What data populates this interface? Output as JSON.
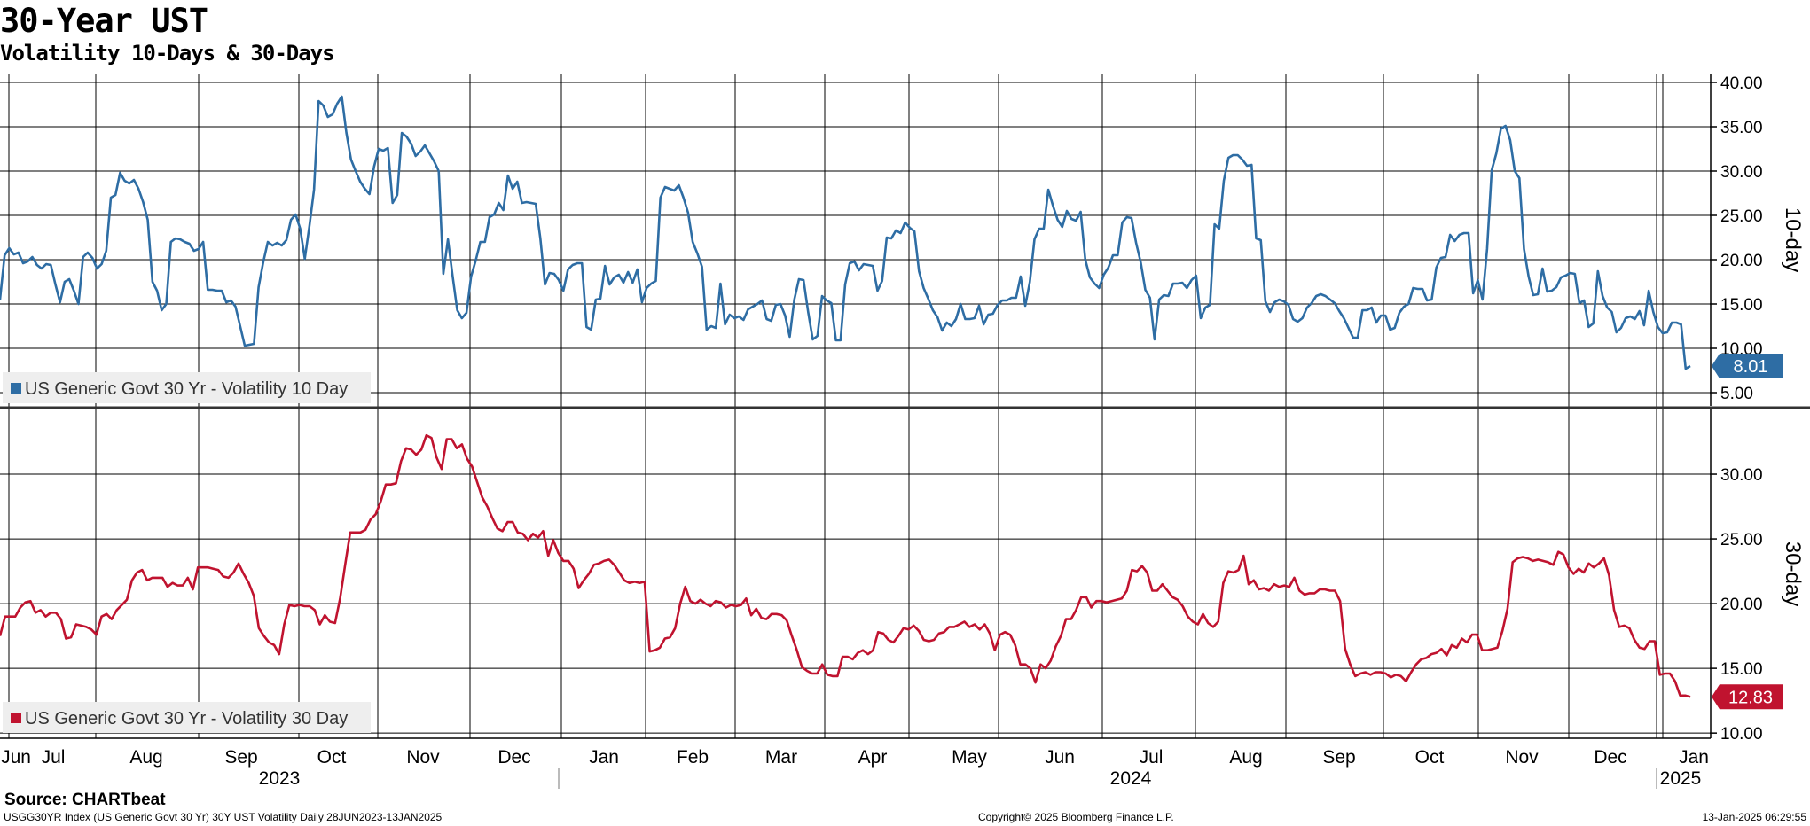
{
  "header": {
    "title": "30-Year UST",
    "subtitle": "Volatility 10-Days & 30-Days"
  },
  "footer": {
    "source": "Source: CHARTbeat",
    "index_desc": "USGG30YR Index (US Generic Govt 30 Yr) 30Y UST Volatility  Daily 28JUN2023-13JAN2025",
    "copyright": "Copyright© 2025 Bloomberg Finance L.P.",
    "timestamp": "13-Jan-2025 06:29:55"
  },
  "colors": {
    "blue": "#2e6da4",
    "red": "#c0132f",
    "grid": "#000000",
    "legend_bg": "#eeeeee"
  },
  "x_axis": {
    "months": [
      "Jun",
      "Jul",
      "Aug",
      "Sep",
      "Oct",
      "Nov",
      "Dec",
      "Jan",
      "Feb",
      "Mar",
      "Apr",
      "May",
      "Jun",
      "Jul",
      "Aug",
      "Sep",
      "Oct",
      "Nov",
      "Dec",
      "Jan"
    ],
    "years": [
      "2023",
      "2024",
      "2025"
    ]
  },
  "chart_data": [
    {
      "type": "line",
      "panel": "top",
      "ylabel": "10-day",
      "ylim": [
        3.5,
        41.0
      ],
      "yticks": [
        "40.00",
        "35.00",
        "30.00",
        "25.00",
        "20.00",
        "15.00",
        "10.00",
        "5.00"
      ],
      "last_value": "8.01",
      "series": [
        {
          "name": "US Generic Govt 30 Yr - Volatility 10 Day",
          "x_range": [
            "28JUN2023",
            "13JAN2025"
          ],
          "values": [
            15.5,
            20.5,
            21.3,
            20.6,
            20.8,
            19.6,
            19.8,
            20.3,
            19.4,
            19.0,
            19.5,
            19.4,
            17.2,
            15.2,
            17.5,
            17.8,
            16.5,
            15.0,
            20.3,
            20.8,
            20.2,
            19.0,
            19.5,
            21.0,
            27.0,
            27.3,
            29.8,
            28.9,
            28.6,
            29.0,
            28.0,
            26.5,
            24.5,
            17.5,
            16.5,
            14.3,
            15.0,
            22.0,
            22.4,
            22.3,
            22.0,
            21.8,
            21.0,
            21.2,
            22.0,
            16.6,
            16.6,
            16.5,
            16.5,
            15.2,
            15.4,
            14.7,
            12.5,
            10.3,
            10.4,
            10.5,
            16.9,
            19.7,
            22.0,
            21.6,
            21.9,
            21.6,
            22.2,
            24.5,
            25.1,
            23.5,
            20.1,
            23.8,
            27.9,
            37.9,
            37.4,
            36.1,
            36.4,
            37.6,
            38.4,
            34.3,
            31.3,
            30.0,
            28.8,
            28.0,
            27.4,
            30.5,
            32.5,
            32.3,
            32.6,
            26.4,
            27.3,
            34.3,
            33.9,
            33.1,
            31.7,
            32.2,
            32.9,
            32.0,
            31.1,
            30.0,
            18.4,
            22.3,
            18.2,
            14.3,
            13.4,
            14.0,
            18.1,
            19.9,
            22.0,
            22.0,
            24.8,
            25.1,
            26.4,
            25.6,
            29.5,
            28.0,
            28.8,
            26.4,
            26.5,
            26.4,
            26.3,
            22.4,
            17.2,
            18.5,
            18.4,
            17.7,
            16.5,
            18.9,
            19.4,
            19.6,
            19.6,
            12.4,
            12.1,
            15.5,
            15.6,
            19.3,
            17.2,
            18.0,
            18.3,
            17.4,
            18.6,
            17.4,
            18.9,
            15.2,
            16.8,
            17.3,
            17.6,
            27.0,
            28.2,
            28.0,
            27.8,
            28.4,
            27.0,
            25.3,
            22.0,
            20.7,
            19.2,
            12.1,
            12.5,
            12.3,
            17.3,
            12.7,
            13.8,
            13.4,
            13.6,
            13.2,
            14.4,
            14.7,
            15.0,
            15.4,
            13.3,
            13.1,
            14.9,
            15.0,
            13.7,
            11.3,
            15.5,
            17.8,
            17.7,
            14.1,
            11.0,
            11.4,
            15.9,
            15.4,
            15.1,
            10.9,
            10.9,
            17.2,
            19.6,
            19.8,
            18.8,
            19.5,
            19.4,
            19.3,
            16.5,
            17.6,
            22.5,
            22.4,
            23.3,
            23.0,
            24.2,
            23.6,
            23.2,
            18.7,
            16.8,
            15.6,
            14.3,
            13.5,
            12.0,
            12.9,
            12.5,
            13.3,
            15.0,
            13.3,
            13.3,
            13.4,
            14.8,
            12.7,
            13.8,
            13.9,
            14.9,
            15.4,
            15.4,
            15.7,
            15.7,
            18.1,
            14.8,
            17.5,
            22.3,
            23.5,
            23.5,
            27.9,
            26.1,
            24.5,
            23.7,
            25.5,
            24.6,
            24.4,
            25.4,
            20.0,
            18.0,
            17.3,
            16.8,
            18.3,
            19.1,
            20.5,
            20.5,
            24.2,
            24.8,
            24.7,
            21.9,
            19.7,
            16.6,
            15.7,
            11.0,
            15.5,
            16.0,
            15.9,
            17.3,
            17.3,
            17.4,
            16.8,
            17.7,
            18.2,
            13.4,
            14.6,
            14.9,
            24.0,
            23.5,
            28.9,
            31.5,
            31.8,
            31.8,
            31.3,
            30.6,
            30.7,
            22.4,
            22.2,
            15.3,
            14.1,
            15.2,
            15.5,
            15.3,
            14.9,
            13.3,
            13.0,
            13.4,
            14.6,
            15.1,
            15.9,
            16.1,
            15.9,
            15.5,
            15.1,
            14.2,
            13.4,
            12.3,
            11.2,
            11.2,
            14.3,
            14.3,
            14.6,
            12.9,
            13.7,
            13.7,
            12.1,
            12.3,
            14.0,
            14.7,
            15.0,
            16.8,
            16.7,
            16.7,
            15.4,
            15.5,
            19.1,
            20.2,
            20.3,
            22.8,
            22.1,
            22.8,
            23.0,
            23.0,
            16.2,
            17.7,
            15.5,
            21.2,
            30.1,
            32.0,
            34.8,
            35.1,
            33.5,
            30.0,
            29.2,
            21.2,
            18.1,
            16.0,
            16.1,
            19.0,
            16.4,
            16.5,
            16.9,
            18.0,
            18.2,
            18.5,
            18.4,
            15.1,
            15.4,
            12.4,
            12.8,
            18.7,
            15.9,
            14.6,
            14.1,
            11.8,
            12.3,
            13.4,
            13.6,
            13.3,
            14.2,
            12.6,
            16.5,
            14.1,
            12.4,
            11.7,
            11.8,
            12.9,
            12.9,
            12.7,
            7.7,
            8.0
          ]
        }
      ]
    },
    {
      "type": "line",
      "panel": "bottom",
      "ylabel": "30-day",
      "ylim": [
        9.6,
        35.0
      ],
      "yticks": [
        "30.00",
        "25.00",
        "20.00",
        "15.00",
        "10.00"
      ],
      "last_value": "12.83",
      "series": [
        {
          "name": "US Generic Govt 30 Yr - Volatility 30 Day",
          "x_range": [
            "28JUN2023",
            "13JAN2025"
          ],
          "values": [
            17.5,
            19.0,
            19.0,
            19.0,
            19.7,
            20.1,
            20.2,
            19.3,
            19.5,
            19.0,
            19.3,
            19.3,
            18.8,
            17.3,
            17.4,
            18.4,
            18.3,
            18.2,
            18.0,
            17.6,
            19.0,
            19.2,
            18.8,
            19.5,
            19.9,
            20.3,
            21.8,
            22.4,
            22.6,
            21.8,
            22.0,
            22.0,
            22.0,
            21.3,
            21.6,
            21.4,
            21.4,
            22.0,
            21.1,
            22.8,
            22.8,
            22.8,
            22.7,
            22.6,
            22.1,
            22.0,
            22.4,
            23.1,
            22.3,
            21.6,
            20.6,
            18.1,
            17.5,
            17.0,
            16.8,
            16.1,
            18.4,
            19.9,
            19.8,
            19.9,
            19.8,
            19.8,
            19.5,
            18.4,
            19.1,
            18.6,
            18.5,
            20.4,
            23.0,
            25.5,
            25.5,
            25.5,
            25.7,
            26.5,
            26.9,
            27.9,
            29.2,
            29.2,
            29.3,
            31.0,
            32.0,
            31.9,
            31.5,
            31.9,
            33.0,
            32.8,
            31.3,
            30.4,
            32.7,
            32.7,
            32.0,
            32.3,
            31.2,
            30.6,
            29.4,
            28.2,
            27.5,
            26.6,
            25.8,
            25.6,
            26.3,
            26.3,
            25.5,
            25.4,
            24.9,
            25.4,
            25.1,
            25.6,
            23.7,
            24.9,
            23.9,
            23.3,
            23.3,
            22.7,
            21.2,
            21.8,
            22.3,
            23.0,
            23.1,
            23.3,
            23.4,
            23.0,
            22.4,
            21.8,
            21.6,
            21.7,
            21.6,
            21.7,
            16.3,
            16.4,
            16.6,
            17.3,
            17.4,
            18.1,
            20.0,
            21.3,
            20.2,
            20.0,
            20.3,
            20.0,
            19.8,
            20.2,
            20.1,
            19.7,
            19.9,
            19.8,
            19.9,
            20.4,
            19.1,
            19.6,
            18.9,
            18.8,
            19.2,
            19.2,
            19.1,
            18.7,
            17.5,
            16.4,
            15.1,
            14.8,
            14.6,
            14.6,
            15.3,
            14.5,
            14.4,
            14.4,
            15.9,
            15.9,
            15.7,
            16.2,
            16.4,
            16.1,
            16.4,
            17.8,
            17.7,
            17.2,
            17.0,
            17.5,
            18.1,
            18.0,
            18.3,
            17.9,
            17.2,
            17.1,
            17.2,
            17.7,
            17.8,
            18.2,
            18.2,
            18.4,
            18.6,
            18.2,
            18.4,
            18.0,
            18.4,
            17.7,
            16.4,
            17.6,
            17.8,
            17.6,
            16.8,
            15.3,
            15.3,
            15.0,
            13.9,
            15.3,
            15.0,
            15.6,
            16.7,
            17.5,
            18.8,
            18.8,
            19.5,
            20.5,
            20.5,
            19.7,
            20.2,
            20.2,
            20.1,
            20.2,
            20.3,
            20.4,
            21.0,
            22.6,
            22.5,
            22.9,
            22.4,
            21.0,
            21.0,
            21.5,
            21.0,
            20.5,
            20.3,
            19.8,
            19.0,
            18.6,
            18.4,
            19.2,
            18.5,
            18.2,
            18.6,
            21.6,
            22.5,
            22.4,
            22.6,
            23.7,
            21.5,
            21.8,
            21.1,
            21.2,
            21.0,
            21.5,
            21.3,
            21.4,
            21.3,
            22.0,
            21.0,
            20.7,
            20.8,
            20.8,
            21.1,
            21.1,
            21.0,
            21.0,
            20.2,
            16.5,
            15.3,
            14.4,
            14.6,
            14.7,
            14.5,
            14.7,
            14.7,
            14.6,
            14.3,
            14.5,
            14.4,
            14.0,
            14.7,
            15.3,
            15.7,
            15.8,
            16.1,
            16.2,
            16.5,
            16.0,
            16.8,
            16.6,
            17.3,
            17.0,
            17.6,
            17.6,
            16.4,
            16.4,
            16.5,
            16.6,
            17.9,
            19.6,
            23.2,
            23.5,
            23.6,
            23.5,
            23.3,
            23.4,
            23.3,
            23.2,
            23.0,
            24.0,
            23.8,
            22.8,
            22.3,
            22.7,
            22.4,
            23.1,
            22.8,
            23.1,
            23.5,
            22.2,
            19.5,
            18.2,
            18.3,
            18.1,
            17.2,
            16.6,
            16.5,
            17.1,
            17.1,
            14.5,
            14.6,
            14.6,
            14.0,
            12.9,
            12.9,
            12.8
          ]
        }
      ]
    }
  ]
}
